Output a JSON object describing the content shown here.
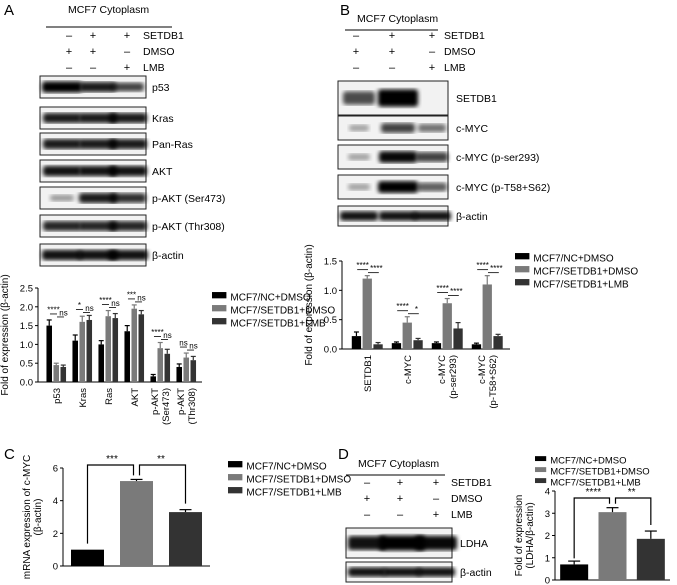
{
  "panels": {
    "A": {
      "letter": "A",
      "header": "MCF7 Cytoplasm",
      "conditions": [
        {
          "label": "SETDB1",
          "values": [
            "–",
            "+",
            "+"
          ]
        },
        {
          "label": "DMSO",
          "values": [
            "+",
            "+",
            "–"
          ]
        },
        {
          "label": "LMB",
          "values": [
            "–",
            "–",
            "+"
          ]
        }
      ],
      "blots": [
        "p53",
        "Kras",
        "Pan-Ras",
        "AKT",
        "p-AKT (Ser473)",
        "p-AKT (Thr308)",
        "β-actin"
      ]
    },
    "B": {
      "letter": "B",
      "header": "MCF7 Cytoplasm",
      "conditions": [
        {
          "label": "SETDB1",
          "values": [
            "–",
            "+",
            "+"
          ]
        },
        {
          "label": "DMSO",
          "values": [
            "+",
            "+",
            "–"
          ]
        },
        {
          "label": "LMB",
          "values": [
            "–",
            "–",
            "+"
          ]
        }
      ],
      "blots": [
        "SETDB1",
        "c-MYC",
        "c-MYC (p-ser293)",
        "c-MYC (p-T58+S62)",
        "β-actin"
      ]
    },
    "C": {
      "letter": "C"
    },
    "D": {
      "letter": "D",
      "header": "MCF7 Cytoplasm",
      "conditions": [
        {
          "label": "SETDB1",
          "values": [
            "–",
            "+",
            "+"
          ]
        },
        {
          "label": "DMSO",
          "values": [
            "+",
            "+",
            "–"
          ]
        },
        {
          "label": "LMB",
          "values": [
            "–",
            "–",
            "+"
          ]
        }
      ],
      "blots": [
        "LDHA",
        "β-actin"
      ]
    }
  },
  "legend": [
    "MCF7/NC+DMSO",
    "MCF7/SETDB1+DMSO",
    "MCF7/SETDB1+LMB"
  ],
  "colors": {
    "nc": "#000000",
    "setdb1": "#7a7a7a",
    "lmb": "#333333"
  },
  "chart_data": [
    {
      "panel": "A",
      "type": "bar",
      "ylabel": "Fold of expression (β-actin)",
      "ylim": [
        0,
        2.5
      ],
      "yticks": [
        "0.0",
        "0.5",
        "1.0",
        "1.5",
        "2.0",
        "2.5"
      ],
      "categories": [
        "p53",
        "Kras",
        "Ras",
        "AKT",
        "p-AKT (Ser473)",
        "p-AKT (Thr308)"
      ],
      "series": [
        {
          "name": "MCF7/NC+DMSO",
          "values": [
            1.5,
            1.1,
            1.0,
            1.35,
            0.15,
            0.4
          ],
          "errors": [
            0.15,
            0.15,
            0.1,
            0.15,
            0.05,
            0.08
          ]
        },
        {
          "name": "MCF7/SETDB1+DMSO",
          "values": [
            0.45,
            1.6,
            1.75,
            1.95,
            0.9,
            0.65
          ],
          "errors": [
            0.05,
            0.15,
            0.15,
            0.1,
            0.15,
            0.12
          ]
        },
        {
          "name": "MCF7/SETDB1+LMB",
          "values": [
            0.4,
            1.65,
            1.7,
            1.8,
            0.75,
            0.58
          ],
          "errors": [
            0.05,
            0.12,
            0.12,
            0.1,
            0.12,
            0.1
          ]
        }
      ],
      "annotations": [
        "****",
        "ns",
        "*",
        "ns",
        "****",
        "ns",
        "***",
        "ns",
        "****",
        "ns",
        "ns",
        "ns"
      ]
    },
    {
      "panel": "B",
      "type": "bar",
      "ylabel": "Fold of expression (β-actin)",
      "ylim": [
        0,
        1.5
      ],
      "yticks": [
        "0.0",
        "0.5",
        "1.0",
        "1.5"
      ],
      "categories": [
        "SETDB1",
        "c-MYC",
        "c-MYC (p-ser293)",
        "c-MYC (p-T58+S62)"
      ],
      "series": [
        {
          "name": "MCF7/NC+DMSO",
          "values": [
            0.22,
            0.1,
            0.1,
            0.08
          ],
          "errors": [
            0.07,
            0.02,
            0.02,
            0.02
          ]
        },
        {
          "name": "MCF7/SETDB1+DMSO",
          "values": [
            1.2,
            0.45,
            0.78,
            1.1
          ],
          "errors": [
            0.05,
            0.1,
            0.08,
            0.15
          ]
        },
        {
          "name": "MCF7/SETDB1+LMB",
          "values": [
            0.08,
            0.15,
            0.35,
            0.22
          ],
          "errors": [
            0.03,
            0.03,
            0.1,
            0.03
          ]
        }
      ],
      "annotations": [
        "****",
        "****",
        "****",
        "*",
        "****",
        "****",
        "****",
        "****"
      ]
    },
    {
      "panel": "C",
      "type": "bar",
      "ylabel": "mRNA expression of c-MYC (β-actin)",
      "ylim": [
        0,
        6
      ],
      "yticks": [
        "0",
        "2",
        "4",
        "6"
      ],
      "categories": [
        "MCF7/NC+DMSO",
        "MCF7/SETDB1+DMSO",
        "MCF7/SETDB1+LMB"
      ],
      "values": [
        1.0,
        5.2,
        3.3
      ],
      "errors": [
        0.0,
        0.1,
        0.15
      ],
      "annotations": [
        "***",
        "**"
      ]
    },
    {
      "panel": "D",
      "type": "bar",
      "ylabel": "Fold of expression (LDHA/β-actin)",
      "ylim": [
        0,
        4
      ],
      "yticks": [
        "0",
        "1",
        "2",
        "3",
        "4"
      ],
      "categories": [
        "MCF7/NC+DMSO",
        "MCF7/SETDB1+DMSO",
        "MCF7/SETDB1+LMB"
      ],
      "values": [
        0.7,
        3.05,
        1.85
      ],
      "errors": [
        0.15,
        0.2,
        0.35
      ],
      "annotations": [
        "****",
        "**"
      ]
    }
  ]
}
